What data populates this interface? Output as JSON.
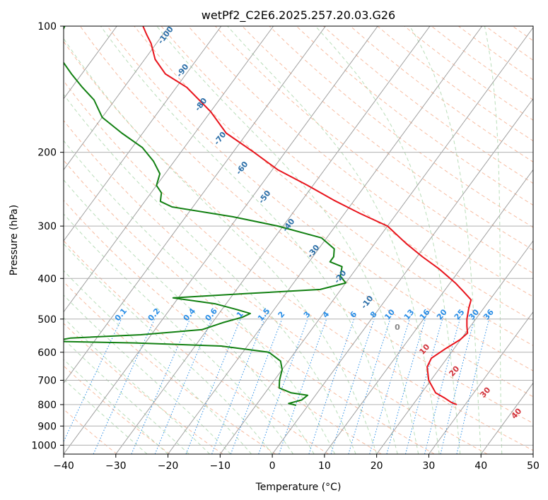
{
  "chart_data": {
    "type": "line",
    "title": "wetPf2_C2E6.2025.257.20.03.G26",
    "xlabel": "Temperature (°C)",
    "ylabel": "Pressure (hPa)",
    "xlim": [
      -40,
      50
    ],
    "ylim": [
      1050,
      100
    ],
    "y_scale": "log",
    "grid": true,
    "x_ticks": [
      -40,
      -30,
      -20,
      -10,
      0,
      10,
      20,
      30,
      40,
      50
    ],
    "y_ticks": [
      100,
      200,
      300,
      400,
      500,
      600,
      700,
      800,
      900,
      1000
    ],
    "series": [
      {
        "role": "temperature",
        "color": "#e8141c",
        "points": [
          [
            28.4,
            800
          ],
          [
            27,
            790
          ],
          [
            25,
            770
          ],
          [
            22.7,
            750
          ],
          [
            19.6,
            700
          ],
          [
            17.4,
            650
          ],
          [
            17,
            620
          ],
          [
            18.3,
            590
          ],
          [
            19.9,
            560
          ],
          [
            20.4,
            540
          ],
          [
            19.3,
            520
          ],
          [
            18.3,
            500
          ],
          [
            17.1,
            470
          ],
          [
            16.4,
            450
          ],
          [
            13.8,
            430
          ],
          [
            11,
            410
          ],
          [
            6,
            380
          ],
          [
            1,
            355
          ],
          [
            -4,
            330
          ],
          [
            -10,
            300
          ],
          [
            -17,
            280
          ],
          [
            -24,
            260
          ],
          [
            -31,
            240
          ],
          [
            -39,
            220
          ],
          [
            -46,
            200
          ],
          [
            -54,
            180
          ],
          [
            -60,
            160
          ],
          [
            -68,
            140
          ],
          [
            -74,
            130
          ],
          [
            -78,
            120
          ],
          [
            -81,
            110
          ],
          [
            -83,
            105
          ],
          [
            -85,
            100
          ]
        ]
      },
      {
        "role": "dewpoint",
        "color": "#128012",
        "points": [
          [
            -2.3,
            803
          ],
          [
            -4,
            795
          ],
          [
            -2,
            780
          ],
          [
            -1.5,
            760
          ],
          [
            -5,
            750
          ],
          [
            -8,
            730
          ],
          [
            -9,
            700
          ],
          [
            -10,
            660
          ],
          [
            -11.5,
            630
          ],
          [
            -15,
            600
          ],
          [
            -25,
            580
          ],
          [
            -42,
            570
          ],
          [
            -58,
            565
          ],
          [
            -55,
            555
          ],
          [
            -42,
            545
          ],
          [
            -31,
            530
          ],
          [
            -28,
            510
          ],
          [
            -25,
            495
          ],
          [
            -24,
            485
          ],
          [
            -27,
            475
          ],
          [
            -32,
            460
          ],
          [
            -41,
            445
          ],
          [
            -28,
            435
          ],
          [
            -14,
            425
          ],
          [
            -10,
            410
          ],
          [
            -12,
            395
          ],
          [
            -13,
            375
          ],
          [
            -16,
            365
          ],
          [
            -16,
            355
          ],
          [
            -17,
            340
          ],
          [
            -21,
            320
          ],
          [
            -31,
            300
          ],
          [
            -41,
            285
          ],
          [
            -54,
            270
          ],
          [
            -57,
            262
          ],
          [
            -58,
            250
          ],
          [
            -60,
            240
          ],
          [
            -61,
            225
          ],
          [
            -64,
            210
          ],
          [
            -68,
            195
          ],
          [
            -74,
            180
          ],
          [
            -80,
            165
          ],
          [
            -84,
            150
          ],
          [
            -88,
            140
          ],
          [
            -92,
            130
          ],
          [
            -96,
            120
          ],
          [
            -99,
            110
          ],
          [
            -100,
            100
          ]
        ]
      }
    ],
    "mixing_ratio_labels": [
      "0.1",
      "0.2",
      "0.4",
      "0.6",
      "1",
      "1.5",
      "2",
      "3",
      "4",
      "6",
      "8",
      "10",
      "13",
      "16",
      "20",
      "25",
      "30",
      "36"
    ],
    "dry_adiabat_labels": [
      "-100",
      "-90",
      "-80",
      "-70",
      "-60",
      "-50",
      "-40",
      "-30",
      "-20",
      "-10"
    ],
    "moist_adiabat_labels": [
      "10",
      "20",
      "30",
      "40"
    ],
    "zero_label": "0"
  }
}
